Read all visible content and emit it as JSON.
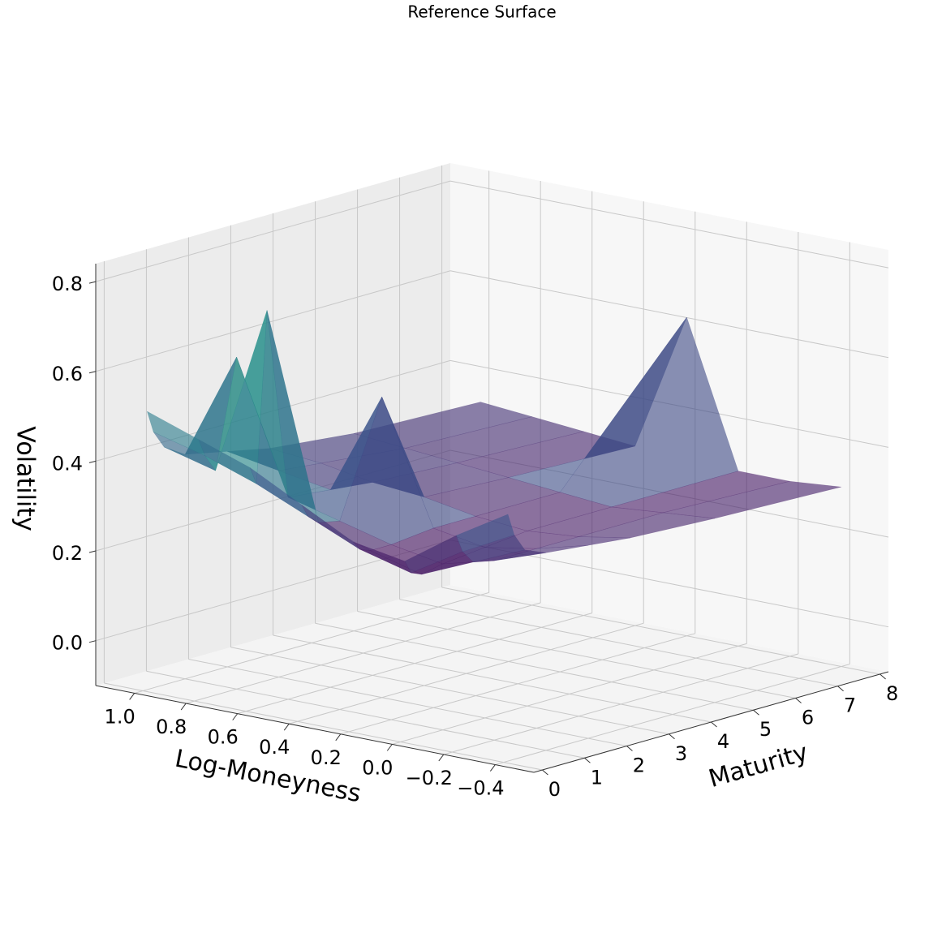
{
  "chart_data": {
    "type": "surface3d",
    "title": "Reference Surface",
    "xlabel": "Log-Moneyness",
    "ylabel": "Maturity",
    "zlabel": "Volatility",
    "x": [
      -0.4,
      -0.2,
      0,
      0.2,
      0.4,
      0.6,
      0.8,
      1.0
    ],
    "y": [
      0.1,
      0.25,
      0.5,
      1,
      2,
      3,
      5,
      8
    ],
    "z": [
      [
        0.45,
        0.38,
        0.3,
        0.32,
        0.38,
        0.44,
        0.48,
        0.52
      ],
      [
        0.4,
        0.34,
        0.27,
        0.3,
        0.35,
        0.4,
        0.44,
        0.47
      ],
      [
        0.36,
        0.31,
        0.26,
        0.29,
        0.33,
        0.78,
        0.4,
        0.43
      ],
      [
        0.34,
        0.3,
        0.27,
        0.29,
        0.32,
        0.35,
        0.64,
        0.4
      ],
      [
        0.33,
        0.3,
        0.28,
        0.3,
        0.57,
        0.34,
        0.36,
        0.38
      ],
      [
        0.32,
        0.3,
        0.29,
        0.3,
        0.32,
        0.33,
        0.35,
        0.36
      ],
      [
        0.31,
        0.3,
        0.29,
        0.3,
        0.31,
        0.32,
        0.33,
        0.34
      ],
      [
        0.3,
        0.29,
        0.29,
        0.61,
        0.3,
        0.31,
        0.32,
        0.33
      ]
    ],
    "colormap": [
      "#440154",
      "#3b528b",
      "#21918c",
      "#5ec962",
      "#fde725"
    ],
    "alpha": 0.6,
    "xlim": [
      -0.55,
      1.15
    ],
    "ylim": [
      -0.2,
      8.2
    ],
    "zlim": [
      -0.1,
      0.84
    ],
    "xticks": [
      {
        "value": -0.4,
        "label": "−0.4"
      },
      {
        "value": -0.2,
        "label": "−0.2"
      },
      {
        "value": 0,
        "label": "0.0"
      },
      0.2,
      0.4,
      0.6,
      0.8,
      {
        "value": 1.0,
        "label": "1.0"
      }
    ],
    "yticks": [
      0,
      1,
      2,
      3,
      4,
      5,
      6,
      7,
      8
    ],
    "zticks": [
      {
        "value": 0,
        "label": "0.0"
      },
      0.2,
      0.4,
      0.6,
      0.8
    ],
    "grid": true
  }
}
